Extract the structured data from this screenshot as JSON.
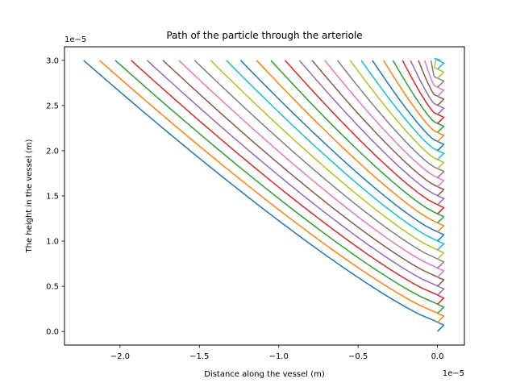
{
  "chart_data": {
    "type": "line",
    "title": "Path of the particle through the arteriole",
    "xlabel": "Distance along the vessel (m)",
    "ylabel": "The height in the vessel (m)",
    "x_offset_text": "1e−5",
    "y_offset_text": "1e−5",
    "xlim": [
      -2.35e-05,
      1.7e-06
    ],
    "ylim": [
      -1.5e-06,
      3.15e-05
    ],
    "xticks": [
      -2e-05,
      -1.5e-05,
      -1e-05,
      -5e-06,
      0.0
    ],
    "xtick_labels": [
      "−2.0",
      "−1.5",
      "−1.0",
      "−0.5",
      "0.0"
    ],
    "yticks": [
      0.0,
      5e-06,
      1e-05,
      1.5e-05,
      2e-05,
      2.5e-05,
      3e-05
    ],
    "ytick_labels": [
      "0.0",
      "0.5",
      "1.0",
      "1.5",
      "2.0",
      "2.5",
      "3.0"
    ],
    "grid": false,
    "legend": "none",
    "top_height": 3e-05,
    "bottom_height": 0.0,
    "start_heights": [
      0.0,
      1e-06,
      2e-06,
      3e-06,
      4e-06,
      5e-06,
      6e-06,
      7e-06,
      8e-06,
      9e-06,
      1e-05,
      1.1e-05,
      1.2e-05,
      1.3e-05,
      1.4e-05,
      1.5e-05,
      1.6e-05,
      1.7e-05,
      1.8e-05,
      1.9e-05,
      2e-05,
      2.1e-05,
      2.2e-05,
      2.3e-05,
      2.4e-05,
      2.5e-05,
      2.6e-05,
      2.7e-05,
      2.8e-05,
      2.9e-05
    ],
    "end_x": [
      -2.23e-05,
      -2.13e-05,
      -2.03e-05,
      -1.93e-05,
      -1.83e-05,
      -1.73e-05,
      -1.63e-05,
      -1.53e-05,
      -1.43e-05,
      -1.33e-05,
      -1.24e-05,
      -1.14e-05,
      -1.05e-05,
      -9.6e-06,
      -8.7e-06,
      -7.9e-06,
      -7.1e-06,
      -6.3e-06,
      -5.5e-06,
      -4.8e-06,
      -4.1e-06,
      -3.4e-06,
      -2.8e-06,
      -2.2e-06,
      -1.7e-06,
      -1.2e-06,
      -8e-07,
      -4e-07,
      -1e-07,
      2e-07
    ],
    "colors": [
      "#1f77b4",
      "#ff7f0e",
      "#2ca02c",
      "#d62728",
      "#9467bd",
      "#8c564b",
      "#e377c2",
      "#7f7f7f",
      "#bcbd22",
      "#17becf"
    ]
  }
}
